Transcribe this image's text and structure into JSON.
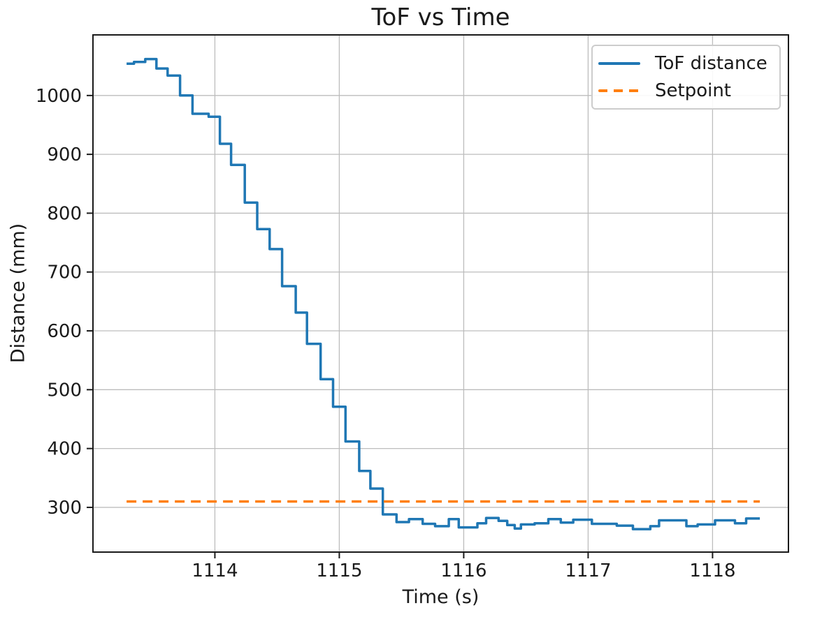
{
  "chart_data": {
    "type": "line",
    "title": "ToF vs Time",
    "xlabel": "Time (s)",
    "ylabel": "Distance (mm)",
    "xlim": [
      1113.02,
      1118.61
    ],
    "ylim": [
      224,
      1103
    ],
    "xticks": [
      1114,
      1115,
      1116,
      1117,
      1118
    ],
    "yticks": [
      300,
      400,
      500,
      600,
      700,
      800,
      900,
      1000
    ],
    "grid": true,
    "legend_position": "upper right",
    "series": [
      {
        "name": "ToF distance",
        "color": "#1f77b4",
        "line_style": "solid",
        "interpolation": "step-after",
        "points": [
          [
            1113.29,
            1054
          ],
          [
            1113.35,
            1057
          ],
          [
            1113.44,
            1062
          ],
          [
            1113.53,
            1046
          ],
          [
            1113.62,
            1034
          ],
          [
            1113.72,
            1000
          ],
          [
            1113.82,
            969
          ],
          [
            1113.95,
            964
          ],
          [
            1114.04,
            918
          ],
          [
            1114.13,
            882
          ],
          [
            1114.24,
            818
          ],
          [
            1114.34,
            773
          ],
          [
            1114.44,
            739
          ],
          [
            1114.54,
            676
          ],
          [
            1114.65,
            631
          ],
          [
            1114.74,
            578
          ],
          [
            1114.85,
            518
          ],
          [
            1114.95,
            471
          ],
          [
            1115.05,
            412
          ],
          [
            1115.16,
            362
          ],
          [
            1115.25,
            332
          ],
          [
            1115.35,
            288
          ],
          [
            1115.46,
            275
          ],
          [
            1115.56,
            280
          ],
          [
            1115.67,
            272
          ],
          [
            1115.77,
            268
          ],
          [
            1115.88,
            280
          ],
          [
            1115.96,
            266
          ],
          [
            1116.11,
            273
          ],
          [
            1116.18,
            282
          ],
          [
            1116.28,
            277
          ],
          [
            1116.35,
            270
          ],
          [
            1116.41,
            264
          ],
          [
            1116.46,
            271
          ],
          [
            1116.57,
            273
          ],
          [
            1116.68,
            280
          ],
          [
            1116.78,
            274
          ],
          [
            1116.88,
            279
          ],
          [
            1117.03,
            272
          ],
          [
            1117.23,
            269
          ],
          [
            1117.36,
            263
          ],
          [
            1117.5,
            268
          ],
          [
            1117.57,
            278
          ],
          [
            1117.79,
            268
          ],
          [
            1117.88,
            271
          ],
          [
            1118.02,
            278
          ],
          [
            1118.18,
            273
          ],
          [
            1118.27,
            281
          ],
          [
            1118.38,
            281
          ]
        ]
      },
      {
        "name": "Setpoint",
        "color": "#ff7f0e",
        "line_style": "dashed",
        "interpolation": "linear",
        "value": 310,
        "points": [
          [
            1113.29,
            310
          ],
          [
            1118.38,
            310
          ]
        ]
      }
    ]
  }
}
